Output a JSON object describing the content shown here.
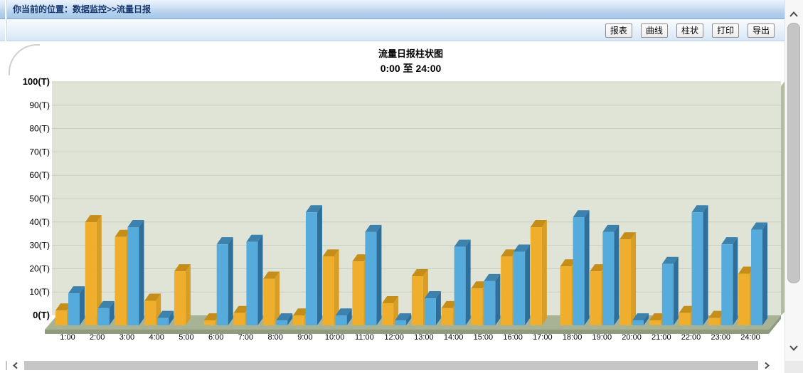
{
  "breadcrumb": {
    "text": "你当前的位置：数据监控>>流量日报"
  },
  "toolbar": {
    "buttons": [
      {
        "id": "report",
        "label": "报表"
      },
      {
        "id": "curve",
        "label": "曲线"
      },
      {
        "id": "bar",
        "label": "柱状"
      },
      {
        "id": "print",
        "label": "打印"
      },
      {
        "id": "export",
        "label": "导出"
      }
    ]
  },
  "chart_data": {
    "type": "bar",
    "style": "3d-column",
    "title": "流量日报柱状图",
    "subtitle": "0:00 至 24:00",
    "unit": "(T)",
    "ylim": [
      0,
      100
    ],
    "ytick_step": 10,
    "ytick_labels": [
      "0(T)",
      "10(T)",
      "20(T)",
      "30(T)",
      "40(T)",
      "50(T)",
      "60(T)",
      "70(T)",
      "80(T)",
      "90(T)",
      "100(T)"
    ],
    "grid": true,
    "legend": "none",
    "categories": [
      "1:00",
      "2:00",
      "3:00",
      "4:00",
      "5:00",
      "6:00",
      "7:00",
      "8:00",
      "9:00",
      "10:00",
      "11:00",
      "12:00",
      "13:00",
      "14:00",
      "15:00",
      "16:00",
      "17:00",
      "18:00",
      "19:00",
      "20:00",
      "21:00",
      "22:00",
      "23:00",
      "24:00"
    ],
    "series": [
      {
        "name": "yellow",
        "color": "#F0AE2D",
        "color_top": "#C68E18",
        "color_side": "#D89D25",
        "values": [
          6,
          42,
          36,
          10,
          22,
          2,
          5,
          19,
          4,
          28,
          26,
          9,
          20,
          7,
          15,
          28,
          40,
          24,
          22,
          35,
          2,
          5,
          3,
          21
        ]
      },
      {
        "name": "blue",
        "color": "#56ABDD",
        "color_top": "#3D82AD",
        "color_side": "#2D6F9A",
        "values": [
          13,
          7,
          40,
          3,
          0,
          33,
          34,
          2,
          46,
          4,
          38,
          2,
          11,
          32,
          18,
          30,
          0,
          44,
          38,
          2,
          25,
          46,
          33,
          39
        ]
      }
    ],
    "colors": {
      "plot_background": "#E0E4D6",
      "gridline": "#C9CEC0",
      "floor": "#A8B295",
      "floor_side": "#8F9A7E",
      "wall_side": "#B3BBA4"
    }
  }
}
